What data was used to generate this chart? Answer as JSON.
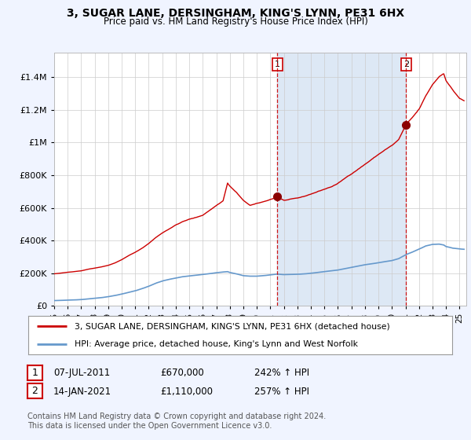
{
  "title": "3, SUGAR LANE, DERSINGHAM, KING'S LYNN, PE31 6HX",
  "subtitle": "Price paid vs. HM Land Registry's House Price Index (HPI)",
  "legend_line1": "3, SUGAR LANE, DERSINGHAM, KING'S LYNN, PE31 6HX (detached house)",
  "legend_line2": "HPI: Average price, detached house, King's Lynn and West Norfolk",
  "annotation1_label": "1",
  "annotation1_date": "07-JUL-2011",
  "annotation1_price": "£670,000",
  "annotation1_hpi": "242% ↑ HPI",
  "annotation2_label": "2",
  "annotation2_date": "14-JAN-2021",
  "annotation2_price": "£1,110,000",
  "annotation2_hpi": "257% ↑ HPI",
  "footer": "Contains HM Land Registry data © Crown copyright and database right 2024.\nThis data is licensed under the Open Government Licence v3.0.",
  "red_line_color": "#cc0000",
  "blue_line_color": "#6699cc",
  "shade_color": "#dde8f5",
  "background_color": "#f0f4ff",
  "plot_bg_color": "#ffffff",
  "ylim": [
    0,
    1550000
  ],
  "yticks": [
    0,
    200000,
    400000,
    600000,
    800000,
    1000000,
    1200000,
    1400000
  ],
  "sale1_year": 2011.52,
  "sale1_price": 670000,
  "sale2_year": 2021.04,
  "sale2_price": 1110000,
  "xmin": 1995.0,
  "xmax": 2025.5
}
